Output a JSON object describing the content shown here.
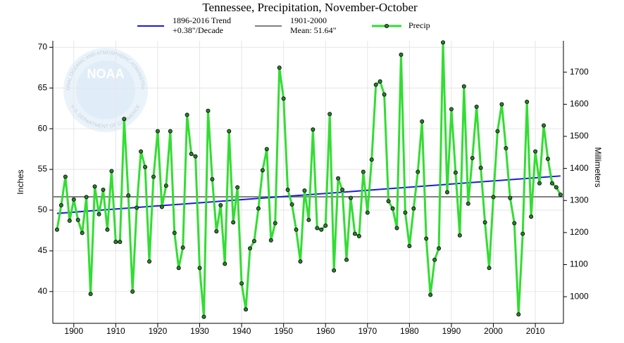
{
  "chart_data": {
    "type": "line",
    "title": "Tennessee, Precipitation, November-October",
    "y_label": "Inches",
    "y2_label": "Millimeters",
    "logo": {
      "center": "NOAA",
      "ring_top": "NATIONAL OCEANIC AND ATMOSPHERIC ADMINISTRATION",
      "ring_bottom": "U.S. DEPARTMENT OF COMMERCE"
    },
    "x": [
      1896,
      1897,
      1898,
      1899,
      1900,
      1901,
      1902,
      1903,
      1904,
      1905,
      1906,
      1907,
      1908,
      1909,
      1910,
      1911,
      1912,
      1913,
      1914,
      1915,
      1916,
      1917,
      1918,
      1919,
      1920,
      1921,
      1922,
      1923,
      1924,
      1925,
      1926,
      1927,
      1928,
      1929,
      1930,
      1931,
      1932,
      1933,
      1934,
      1935,
      1936,
      1937,
      1938,
      1939,
      1940,
      1941,
      1942,
      1943,
      1944,
      1945,
      1946,
      1947,
      1948,
      1949,
      1950,
      1951,
      1952,
      1953,
      1954,
      1955,
      1956,
      1957,
      1958,
      1959,
      1960,
      1961,
      1962,
      1963,
      1964,
      1965,
      1966,
      1967,
      1968,
      1969,
      1970,
      1971,
      1972,
      1973,
      1974,
      1975,
      1976,
      1977,
      1978,
      1979,
      1980,
      1981,
      1982,
      1983,
      1984,
      1985,
      1986,
      1987,
      1988,
      1989,
      1990,
      1991,
      1992,
      1993,
      1994,
      1995,
      1996,
      1997,
      1998,
      1999,
      2000,
      2001,
      2002,
      2003,
      2004,
      2005,
      2006,
      2007,
      2008,
      2009,
      2010,
      2011,
      2012,
      2013,
      2014,
      2015,
      2016
    ],
    "series": [
      {
        "name": "Precip",
        "color": "#33dd33",
        "marker_color": "#2e7d32",
        "values": [
          47.6,
          50.6,
          54.1,
          48.7,
          51.3,
          48.8,
          47.2,
          51.6,
          39.7,
          52.9,
          49.5,
          52.5,
          47.6,
          54.8,
          46.1,
          46.1,
          61.2,
          51.8,
          40.0,
          50.3,
          57.2,
          55.3,
          43.7,
          54.1,
          59.7,
          50.4,
          53.0,
          59.7,
          47.2,
          42.9,
          45.4,
          61.7,
          56.9,
          56.6,
          42.9,
          36.9,
          62.2,
          53.8,
          47.4,
          50.6,
          43.4,
          59.7,
          48.5,
          52.8,
          41.0,
          37.8,
          45.3,
          46.2,
          50.2,
          54.9,
          57.5,
          46.3,
          48.4,
          67.5,
          63.7,
          52.5,
          50.7,
          47.6,
          43.7,
          52.4,
          48.8,
          59.9,
          47.8,
          47.6,
          48.1,
          61.8,
          42.6,
          53.9,
          52.5,
          43.9,
          51.5,
          47.1,
          46.8,
          54.7,
          49.7,
          56.2,
          65.4,
          65.8,
          64.2,
          51.1,
          50.2,
          47.8,
          69.1,
          49.7,
          45.6,
          50.2,
          54.7,
          60.9,
          46.5,
          39.6,
          43.9,
          45.3,
          70.6,
          52.2,
          62.4,
          54.6,
          46.9,
          65.2,
          50.8,
          56.4,
          62.7,
          55.2,
          48.5,
          42.9,
          51.6,
          59.7,
          63.0,
          57.6,
          51.5,
          48.4,
          37.2,
          47.1,
          63.3,
          49.2,
          57.2,
          53.3,
          60.4,
          56.3,
          53.3,
          52.8,
          51.9
        ]
      }
    ],
    "trend": {
      "name": "1896-2016 Trend",
      "label": "+0.38\"/Decade",
      "color": "#1a1add",
      "x": [
        1896,
        2016
      ],
      "values": [
        49.6,
        54.2
      ]
    },
    "mean": {
      "name": "1901-2000",
      "label": "Mean: 51.64\"",
      "color": "#808080",
      "value": 51.64
    },
    "xlim": [
      1895,
      2016.7
    ],
    "xticks": [
      1900,
      1910,
      1920,
      1930,
      1940,
      1950,
      1960,
      1970,
      1980,
      1990,
      2000,
      2010
    ],
    "ylim": [
      36.1,
      70.8
    ],
    "yticks": [
      40,
      45,
      50,
      55,
      60,
      65,
      70
    ],
    "y2lim": [
      917,
      1798
    ],
    "y2ticks": [
      1000,
      1100,
      1200,
      1300,
      1400,
      1500,
      1600,
      1700
    ],
    "grid": true
  }
}
